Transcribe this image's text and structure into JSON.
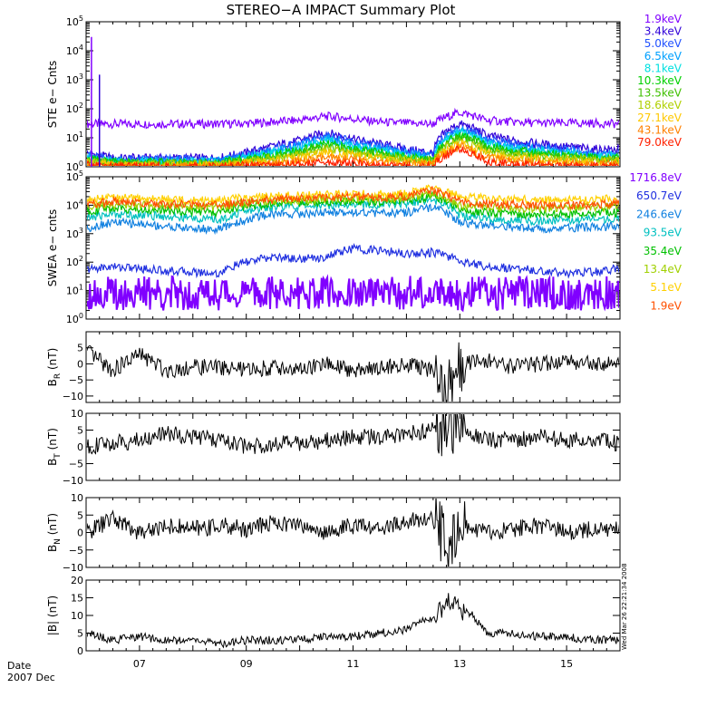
{
  "title": "STEREO−A IMPACT Summary Plot",
  "date_label": "Date",
  "month_label": "2007 Dec",
  "timestamp": "Wed Mar 26 22:21:34 2008",
  "x_ticks": [
    "07",
    "09",
    "11",
    "13",
    "15"
  ],
  "chart_data": [
    {
      "id": "ste",
      "type": "line",
      "ylabel": "STE e− Cnts",
      "yscale": "log",
      "ylim": [
        1,
        100000
      ],
      "yticks": [
        {
          "v": 1,
          "e": "0"
        },
        {
          "v": 10,
          "e": "1"
        },
        {
          "v": 100,
          "e": "2"
        },
        {
          "v": 1000,
          "e": "3"
        },
        {
          "v": 10000,
          "e": "4"
        },
        {
          "v": 100000,
          "e": "5"
        }
      ],
      "legend_position": "right",
      "x_days": [
        6.0,
        6.5,
        7.0,
        7.5,
        8.0,
        8.5,
        9.0,
        9.5,
        10.0,
        10.5,
        11.0,
        11.5,
        12.0,
        12.5,
        13.0,
        13.5,
        14.0,
        14.5,
        15.0,
        15.5,
        16.0
      ],
      "series": [
        {
          "name": "1.9keV",
          "color": "#8000ff",
          "values": [
            30,
            30,
            30,
            30,
            30,
            30,
            31,
            35,
            40,
            55,
            45,
            35,
            32,
            30,
            75,
            40,
            35,
            32,
            32,
            32,
            30
          ]
        },
        {
          "name": "3.4keV",
          "color": "#3000d8",
          "values": [
            3,
            2,
            2,
            2,
            2,
            2,
            3,
            5,
            8,
            15,
            9,
            6,
            4,
            3,
            30,
            12,
            8,
            6,
            5,
            4,
            4
          ]
        },
        {
          "name": "5.0keV",
          "color": "#2050ff",
          "values": [
            2.5,
            1.8,
            1.8,
            1.8,
            1.8,
            1.8,
            2.5,
            4,
            6,
            12,
            7,
            5,
            3.5,
            2.5,
            22,
            9,
            6,
            5,
            4,
            3,
            3
          ]
        },
        {
          "name": "6.5keV",
          "color": "#00a0ff",
          "values": [
            2.2,
            1.6,
            1.6,
            1.6,
            1.6,
            1.6,
            2.2,
            3.5,
            5,
            10,
            6,
            4,
            3,
            2.2,
            18,
            7,
            5,
            4,
            3.5,
            2.5,
            2.5
          ]
        },
        {
          "name": "8.1keV",
          "color": "#00e0e0",
          "values": [
            2,
            1.5,
            1.5,
            1.5,
            1.5,
            1.5,
            2,
            3,
            4,
            8,
            5,
            3.5,
            2.5,
            2,
            15,
            6,
            4,
            3.5,
            3,
            2.2,
            2.2
          ]
        },
        {
          "name": "10.3keV",
          "color": "#00d000",
          "values": [
            1.8,
            1.4,
            1.4,
            1.4,
            1.4,
            1.4,
            1.8,
            2.5,
            3.5,
            6,
            4,
            3,
            2.2,
            1.8,
            12,
            5,
            3.5,
            3,
            2.5,
            2,
            2
          ]
        },
        {
          "name": "13.5keV",
          "color": "#40c000",
          "values": [
            1.6,
            1.3,
            1.3,
            1.3,
            1.3,
            1.3,
            1.6,
            2.2,
            3,
            5,
            3.5,
            2.5,
            2,
            1.6,
            10,
            4,
            3,
            2.5,
            2.2,
            1.8,
            1.8
          ]
        },
        {
          "name": "18.6keV",
          "color": "#b0d000",
          "values": [
            1.5,
            1.2,
            1.2,
            1.2,
            1.2,
            1.2,
            1.5,
            2,
            2.5,
            4,
            3,
            2.2,
            1.8,
            1.5,
            8,
            3.5,
            2.5,
            2.2,
            2,
            1.6,
            1.6
          ]
        },
        {
          "name": "27.1keV",
          "color": "#ffc800",
          "values": [
            1.3,
            1.1,
            1.1,
            1.1,
            1.1,
            1.1,
            1.3,
            1.6,
            2,
            3,
            2.4,
            1.8,
            1.5,
            1.3,
            6,
            2.8,
            2,
            1.8,
            1.6,
            1.4,
            1.4
          ]
        },
        {
          "name": "43.1keV",
          "color": "#ff8000",
          "values": [
            1.2,
            1,
            1,
            1,
            1,
            1,
            1.2,
            1.3,
            1.5,
            2,
            1.7,
            1.4,
            1.2,
            1.2,
            5,
            2,
            1.6,
            1.4,
            1.3,
            1.2,
            1.2
          ]
        },
        {
          "name": "79.0keV",
          "color": "#ff2000",
          "values": [
            1.1,
            1,
            1,
            1,
            1,
            1,
            1.1,
            1.1,
            1.2,
            1.4,
            1.3,
            1.1,
            1,
            1.1,
            4,
            1.5,
            1.2,
            1.1,
            1.1,
            1,
            1
          ]
        }
      ]
    },
    {
      "id": "swea",
      "type": "line",
      "ylabel": "SWEA e− cnts",
      "yscale": "log",
      "ylim": [
        1,
        100000
      ],
      "yticks": [
        {
          "v": 1,
          "e": "0"
        },
        {
          "v": 10,
          "e": "1"
        },
        {
          "v": 100,
          "e": "2"
        },
        {
          "v": 1000,
          "e": "3"
        },
        {
          "v": 10000,
          "e": "4"
        },
        {
          "v": 100000,
          "e": "5"
        }
      ],
      "legend_position": "right",
      "x_days": [
        6.0,
        6.5,
        7.0,
        7.5,
        8.0,
        8.5,
        9.0,
        9.5,
        10.0,
        10.5,
        11.0,
        11.5,
        12.0,
        12.5,
        13.0,
        13.5,
        14.0,
        14.5,
        15.0,
        15.5,
        16.0
      ],
      "series": [
        {
          "name": "1716.8eV",
          "color": "#8000ff",
          "values": [
            8,
            8,
            8,
            8,
            8,
            8,
            8,
            8,
            8,
            8,
            8,
            8,
            8,
            10,
            8,
            8,
            8,
            8,
            8,
            8,
            8
          ]
        },
        {
          "name": "650.7eV",
          "color": "#2030e0",
          "values": [
            55,
            70,
            60,
            50,
            45,
            40,
            100,
            150,
            130,
            150,
            300,
            250,
            200,
            220,
            110,
            70,
            60,
            50,
            40,
            45,
            60
          ]
        },
        {
          "name": "246.6eV",
          "color": "#1080e0",
          "values": [
            1500,
            2500,
            2200,
            1800,
            1500,
            1400,
            3000,
            5000,
            5000,
            5500,
            6000,
            5000,
            5500,
            8000,
            2500,
            2000,
            1800,
            1500,
            1600,
            1700,
            1800
          ]
        },
        {
          "name": "93.5eV",
          "color": "#00c0c0",
          "values": [
            3500,
            5000,
            4500,
            4000,
            3500,
            3000,
            6000,
            9000,
            9000,
            10000,
            11000,
            10000,
            12000,
            16000,
            4500,
            3500,
            3000,
            2800,
            3000,
            3200,
            3500
          ]
        },
        {
          "name": "35.4eV",
          "color": "#00c000",
          "values": [
            6000,
            8000,
            7000,
            6500,
            6000,
            5500,
            9000,
            12000,
            12000,
            13000,
            14000,
            13000,
            15000,
            20000,
            7000,
            5500,
            5000,
            4500,
            5000,
            5200,
            5500
          ]
        },
        {
          "name": "13.4eV",
          "color": "#a0d000",
          "values": [
            9000,
            11000,
            10000,
            9500,
            9000,
            8500,
            12000,
            15000,
            15000,
            16000,
            17000,
            16000,
            18000,
            26000,
            10000,
            9000,
            8000,
            7500,
            8000,
            8500,
            9000
          ]
        },
        {
          "name": "5.1eV",
          "color": "#ffd000",
          "values": [
            15000,
            18000,
            17000,
            16000,
            15000,
            15000,
            18000,
            21000,
            22000,
            24000,
            25000,
            24000,
            26000,
            40000,
            20000,
            17000,
            16000,
            15000,
            15000,
            16000,
            17000
          ]
        },
        {
          "name": "1.9eV",
          "color": "#ff5000",
          "values": [
            11000,
            13000,
            12000,
            11000,
            10500,
            10000,
            13000,
            16000,
            17000,
            18000,
            20000,
            19000,
            21000,
            32000,
            13000,
            11000,
            10500,
            10000,
            10000,
            10500,
            11000
          ]
        }
      ]
    },
    {
      "id": "br",
      "type": "line",
      "ylabel": "B_R (nT)",
      "ylim": [
        -12,
        10
      ],
      "yticks": [
        {
          "v": -10,
          "t": "−10"
        },
        {
          "v": -5,
          "t": "−5"
        },
        {
          "v": 0,
          "t": "0"
        },
        {
          "v": 5,
          "t": "5"
        }
      ],
      "color": "#000000",
      "x_days": [
        6.0,
        6.5,
        7.0,
        7.5,
        8.0,
        8.5,
        9.0,
        9.5,
        10.0,
        10.5,
        11.0,
        11.5,
        12.0,
        12.5,
        12.75,
        13.0,
        13.5,
        14.0,
        14.5,
        15.0,
        15.5,
        16.0
      ],
      "values": [
        4,
        -2,
        3,
        -2,
        -1,
        -1,
        -2,
        -1,
        -2,
        0,
        -2,
        -1,
        0,
        -2,
        -8,
        0,
        1,
        -1,
        0,
        1,
        0,
        0
      ]
    },
    {
      "id": "bt",
      "type": "line",
      "ylabel": "B_T (nT)",
      "ylim": [
        -10,
        10
      ],
      "yticks": [
        {
          "v": -10,
          "t": "−10"
        },
        {
          "v": -5,
          "t": "−5"
        },
        {
          "v": 0,
          "t": "0"
        },
        {
          "v": 5,
          "t": "5"
        },
        {
          "v": 10,
          "t": "10"
        }
      ],
      "color": "#000000",
      "x_days": [
        6.0,
        6.5,
        7.0,
        7.5,
        8.0,
        8.5,
        9.0,
        9.5,
        10.0,
        10.5,
        11.0,
        11.5,
        12.0,
        12.5,
        12.75,
        13.0,
        13.5,
        14.0,
        14.5,
        15.0,
        15.5,
        16.0
      ],
      "values": [
        0,
        1,
        2,
        4,
        3,
        2,
        0,
        1,
        1,
        2,
        3,
        3,
        4,
        5,
        5,
        6,
        2,
        2,
        3,
        2,
        2,
        1
      ]
    },
    {
      "id": "bn",
      "type": "line",
      "ylabel": "B_N (nT)",
      "ylim": [
        -10,
        10
      ],
      "yticks": [
        {
          "v": -10,
          "t": "−10"
        },
        {
          "v": -5,
          "t": "−5"
        },
        {
          "v": 0,
          "t": "0"
        },
        {
          "v": 5,
          "t": "5"
        },
        {
          "v": 10,
          "t": "10"
        }
      ],
      "color": "#000000",
      "x_days": [
        6.0,
        6.5,
        7.0,
        7.5,
        8.0,
        8.5,
        9.0,
        9.5,
        10.0,
        10.5,
        11.0,
        11.5,
        12.0,
        12.5,
        12.75,
        13.0,
        13.5,
        14.0,
        14.5,
        15.0,
        15.5,
        16.0
      ],
      "values": [
        0,
        4,
        0,
        2,
        1,
        2,
        1,
        3,
        2,
        0,
        2,
        1,
        3,
        4,
        -3,
        2,
        0,
        1,
        2,
        0,
        1,
        1
      ]
    },
    {
      "id": "bmag",
      "type": "line",
      "ylabel": "|B| (nT)",
      "ylim": [
        0,
        20
      ],
      "yticks": [
        {
          "v": 0,
          "t": "0"
        },
        {
          "v": 5,
          "t": "5"
        },
        {
          "v": 10,
          "t": "10"
        },
        {
          "v": 15,
          "t": "15"
        },
        {
          "v": 20,
          "t": "20"
        }
      ],
      "color": "#000000",
      "x_days": [
        6.0,
        6.5,
        7.0,
        7.5,
        8.0,
        8.5,
        9.0,
        9.5,
        10.0,
        10.5,
        11.0,
        11.5,
        12.0,
        12.25,
        12.5,
        12.75,
        13.0,
        13.25,
        13.5,
        14.0,
        14.5,
        15.0,
        15.5,
        16.0
      ],
      "values": [
        5,
        3,
        4,
        3,
        3,
        2,
        3,
        3,
        3,
        4,
        4,
        5,
        6,
        8,
        9,
        14,
        12,
        10,
        5,
        5,
        4,
        4,
        3,
        3
      ]
    }
  ]
}
